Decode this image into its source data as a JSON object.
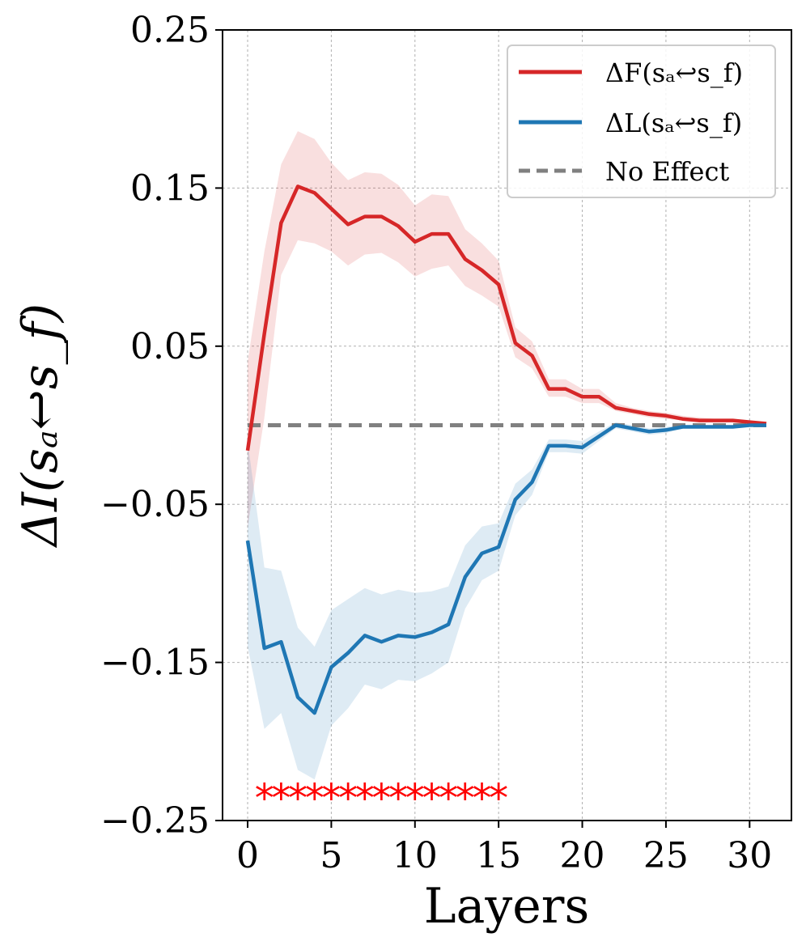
{
  "chart_data": {
    "type": "line",
    "title": "",
    "xlabel": "Layers",
    "ylabel": "ΔI(sₐ↩s_f)",
    "xlim": [
      -1.5,
      32.5
    ],
    "ylim": [
      -0.25,
      0.25
    ],
    "grid": true,
    "legend_position": "upper-right",
    "x_ticks": [
      0,
      5,
      10,
      15,
      20,
      25,
      30
    ],
    "x_tick_labels": [
      "0",
      "5",
      "10",
      "15",
      "20",
      "25",
      "30"
    ],
    "y_ticks": [
      -0.25,
      -0.15,
      -0.05,
      0.05,
      0.15,
      0.25
    ],
    "y_tick_labels": [
      "−0.25",
      "−0.15",
      "−0.05",
      "0.05",
      "0.15",
      "0.25"
    ],
    "x": [
      0,
      1,
      2,
      3,
      4,
      5,
      6,
      7,
      8,
      9,
      10,
      11,
      12,
      13,
      14,
      15,
      16,
      17,
      18,
      19,
      20,
      21,
      22,
      23,
      24,
      25,
      26,
      27,
      28,
      29,
      30,
      31
    ],
    "series": [
      {
        "name": "ΔF(sₐ↩s_f)",
        "legend_label": "ΔF(sₐ↩s_f)",
        "color": "#d62728",
        "values": [
          -0.016,
          0.058,
          0.128,
          0.151,
          0.147,
          0.137,
          0.127,
          0.132,
          0.132,
          0.126,
          0.116,
          0.121,
          0.121,
          0.105,
          0.098,
          0.089,
          0.052,
          0.044,
          0.023,
          0.023,
          0.018,
          0.018,
          0.011,
          0.009,
          0.007,
          0.006,
          0.004,
          0.003,
          0.003,
          0.003,
          0.002,
          0.001
        ],
        "lower": [
          -0.065,
          0.005,
          0.095,
          0.117,
          0.115,
          0.11,
          0.101,
          0.108,
          0.109,
          0.103,
          0.094,
          0.099,
          0.101,
          0.088,
          0.082,
          0.075,
          0.043,
          0.036,
          0.018,
          0.018,
          0.014,
          0.014,
          0.009,
          0.007,
          0.005,
          0.004,
          0.003,
          0.002,
          0.002,
          0.002,
          0.001,
          0.0
        ],
        "upper": [
          0.04,
          0.11,
          0.165,
          0.186,
          0.181,
          0.166,
          0.155,
          0.16,
          0.159,
          0.152,
          0.139,
          0.146,
          0.145,
          0.124,
          0.115,
          0.104,
          0.062,
          0.053,
          0.029,
          0.029,
          0.023,
          0.023,
          0.014,
          0.011,
          0.009,
          0.008,
          0.006,
          0.005,
          0.004,
          0.004,
          0.003,
          0.002
        ]
      },
      {
        "name": "ΔL(sₐ↩s_f)",
        "legend_label": "ΔL(sₐ↩s_f)",
        "color": "#1f77b4",
        "values": [
          -0.073,
          -0.141,
          -0.137,
          -0.172,
          -0.182,
          -0.153,
          -0.144,
          -0.133,
          -0.137,
          -0.133,
          -0.134,
          -0.131,
          -0.126,
          -0.096,
          -0.081,
          -0.077,
          -0.047,
          -0.036,
          -0.013,
          -0.013,
          -0.014,
          -0.007,
          0.0,
          -0.002,
          -0.004,
          -0.003,
          -0.001,
          -0.001,
          -0.001,
          -0.001,
          0.0,
          0.0
        ],
        "lower": [
          -0.14,
          -0.192,
          -0.182,
          -0.218,
          -0.224,
          -0.19,
          -0.179,
          -0.164,
          -0.167,
          -0.161,
          -0.162,
          -0.157,
          -0.15,
          -0.116,
          -0.098,
          -0.092,
          -0.057,
          -0.044,
          -0.017,
          -0.017,
          -0.018,
          -0.01,
          -0.002,
          -0.004,
          -0.006,
          -0.005,
          -0.002,
          -0.002,
          -0.002,
          -0.002,
          -0.001,
          -0.001
        ],
        "upper": [
          -0.01,
          -0.09,
          -0.092,
          -0.128,
          -0.14,
          -0.117,
          -0.11,
          -0.103,
          -0.107,
          -0.104,
          -0.106,
          -0.105,
          -0.102,
          -0.076,
          -0.064,
          -0.062,
          -0.037,
          -0.028,
          -0.009,
          -0.009,
          -0.01,
          -0.004,
          0.002,
          0.0,
          -0.002,
          -0.001,
          0.0,
          0.0,
          0.0,
          0.0,
          0.001,
          0.001
        ]
      }
    ],
    "reference_line": {
      "name": "No Effect",
      "legend_label": "No Effect",
      "y": 0,
      "color": "#808080",
      "style": "dashed"
    },
    "significance_markers": {
      "symbol": "*",
      "color": "#ff0000",
      "y": -0.233,
      "x": [
        1,
        2,
        3,
        4,
        5,
        6,
        7,
        8,
        9,
        10,
        11,
        12,
        13,
        14,
        15
      ]
    }
  }
}
